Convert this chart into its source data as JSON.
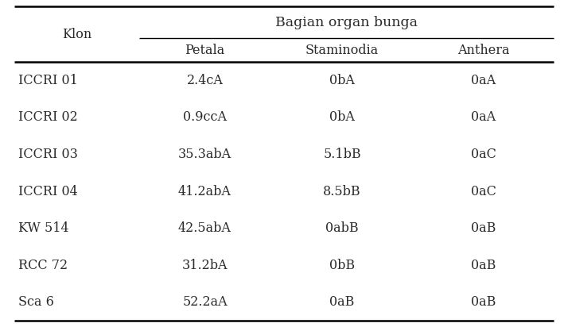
{
  "title_group": "Bagian organ bunga",
  "col_header_1": "Klon",
  "col_header_2": "Petala",
  "col_header_3": "Staminodia",
  "col_header_4": "Anthera",
  "rows": [
    [
      "ICCRI 01",
      "2.4cA",
      "0bA",
      "0aA"
    ],
    [
      "ICCRI 02",
      "0.9ccA",
      "0bA",
      "0aA"
    ],
    [
      "ICCRI 03",
      "35.3abA",
      "5.1bB",
      "0aC"
    ],
    [
      "ICCRI 04",
      "41.2abA",
      "8.5bB",
      "0aC"
    ],
    [
      "KW 514",
      "42.5abA",
      "0abB",
      "0aB"
    ],
    [
      "RCC 72",
      "31.2bA",
      "0bB",
      "0aB"
    ],
    [
      "Sca 6",
      "52.2aA",
      "0aB",
      "0aB"
    ]
  ],
  "bg_color": "#ffffff",
  "text_color": "#2a2a2a",
  "font_size": 11.5
}
